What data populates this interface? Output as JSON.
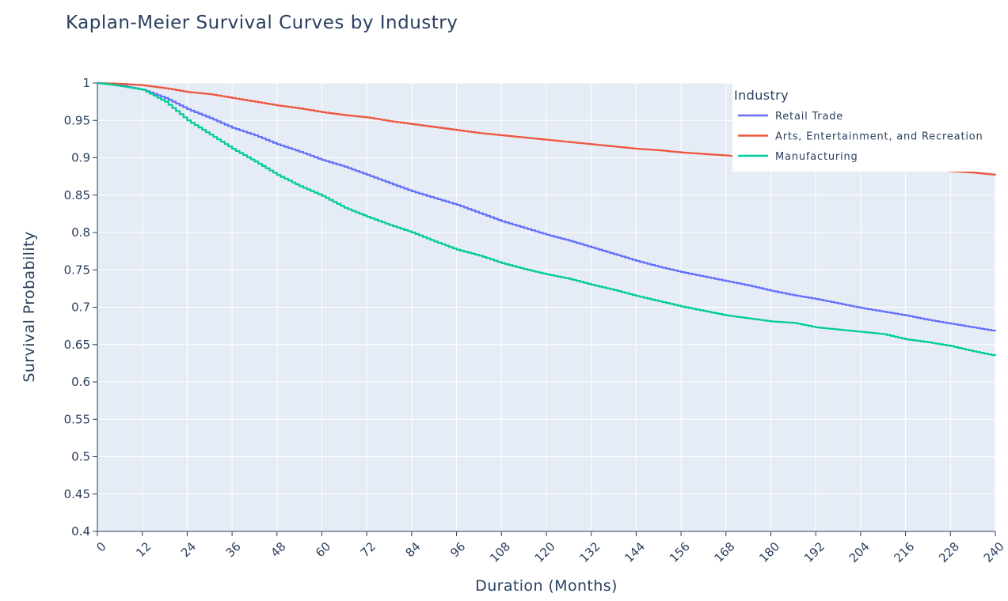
{
  "chart_data": {
    "type": "line",
    "title": "Kaplan-Meier Survival Curves by Industry",
    "xlabel": "Duration (Months)",
    "ylabel": "Survival Probability",
    "xlim": [
      0,
      240
    ],
    "ylim": [
      0.4,
      1.0
    ],
    "x_ticks": [
      0,
      12,
      24,
      36,
      48,
      60,
      72,
      84,
      96,
      108,
      120,
      132,
      144,
      156,
      168,
      180,
      192,
      204,
      216,
      228,
      240
    ],
    "y_ticks": [
      {
        "value": 0.4,
        "label": "0.4"
      },
      {
        "value": 0.45,
        "label": "0.45"
      },
      {
        "value": 0.5,
        "label": "0.5"
      },
      {
        "value": 0.55,
        "label": "0.55"
      },
      {
        "value": 0.6,
        "label": "0.6"
      },
      {
        "value": 0.65,
        "label": "0.65"
      },
      {
        "value": 0.7,
        "label": "0.7"
      },
      {
        "value": 0.75,
        "label": "0.75"
      },
      {
        "value": 0.8,
        "label": "0.8"
      },
      {
        "value": 0.85,
        "label": "0.85"
      },
      {
        "value": 0.9,
        "label": "0.9"
      },
      {
        "value": 0.95,
        "label": "0.95"
      },
      {
        "value": 1.0,
        "label": "1"
      }
    ],
    "grid": true,
    "background_color": "#e5ecf6",
    "legend": {
      "title": "Industry",
      "placement": "top-right"
    },
    "x": [
      0,
      6,
      12,
      18,
      24,
      30,
      36,
      42,
      48,
      54,
      60,
      66,
      72,
      78,
      84,
      90,
      96,
      102,
      108,
      114,
      120,
      126,
      132,
      138,
      144,
      150,
      156,
      162,
      168,
      174,
      180,
      186,
      192,
      198,
      204,
      210,
      216,
      222,
      228,
      234,
      240
    ],
    "series": [
      {
        "name": "Retail Trade",
        "color": "#636efa",
        "values": [
          1.0,
          0.997,
          0.991,
          0.98,
          0.965,
          0.953,
          0.94,
          0.93,
          0.918,
          0.908,
          0.897,
          0.888,
          0.877,
          0.866,
          0.855,
          0.846,
          0.837,
          0.826,
          0.815,
          0.806,
          0.797,
          0.789,
          0.78,
          0.771,
          0.762,
          0.754,
          0.747,
          0.741,
          0.735,
          0.729,
          0.722,
          0.716,
          0.711,
          0.705,
          0.699,
          0.694,
          0.689,
          0.683,
          0.678,
          0.673,
          0.668
        ]
      },
      {
        "name": "Arts, Entertainment, and Recreation",
        "color": "#ef553b",
        "values": [
          1.0,
          0.999,
          0.997,
          0.993,
          0.988,
          0.985,
          0.98,
          0.975,
          0.97,
          0.966,
          0.961,
          0.957,
          0.954,
          0.949,
          0.945,
          0.941,
          0.937,
          0.933,
          0.93,
          0.927,
          0.924,
          0.921,
          0.918,
          0.915,
          0.912,
          0.91,
          0.907,
          0.905,
          0.903,
          0.9,
          0.898,
          0.896,
          0.894,
          0.892,
          0.89,
          0.888,
          0.886,
          0.884,
          0.882,
          0.88,
          0.877
        ]
      },
      {
        "name": "Manufacturing",
        "color": "#00cc96",
        "values": [
          1.0,
          0.996,
          0.991,
          0.975,
          0.95,
          0.931,
          0.912,
          0.895,
          0.877,
          0.862,
          0.849,
          0.833,
          0.821,
          0.81,
          0.8,
          0.788,
          0.777,
          0.769,
          0.759,
          0.751,
          0.744,
          0.738,
          0.73,
          0.723,
          0.715,
          0.708,
          0.701,
          0.695,
          0.689,
          0.685,
          0.681,
          0.679,
          0.673,
          0.67,
          0.667,
          0.664,
          0.657,
          0.653,
          0.648,
          0.641,
          0.635
        ]
      }
    ]
  }
}
